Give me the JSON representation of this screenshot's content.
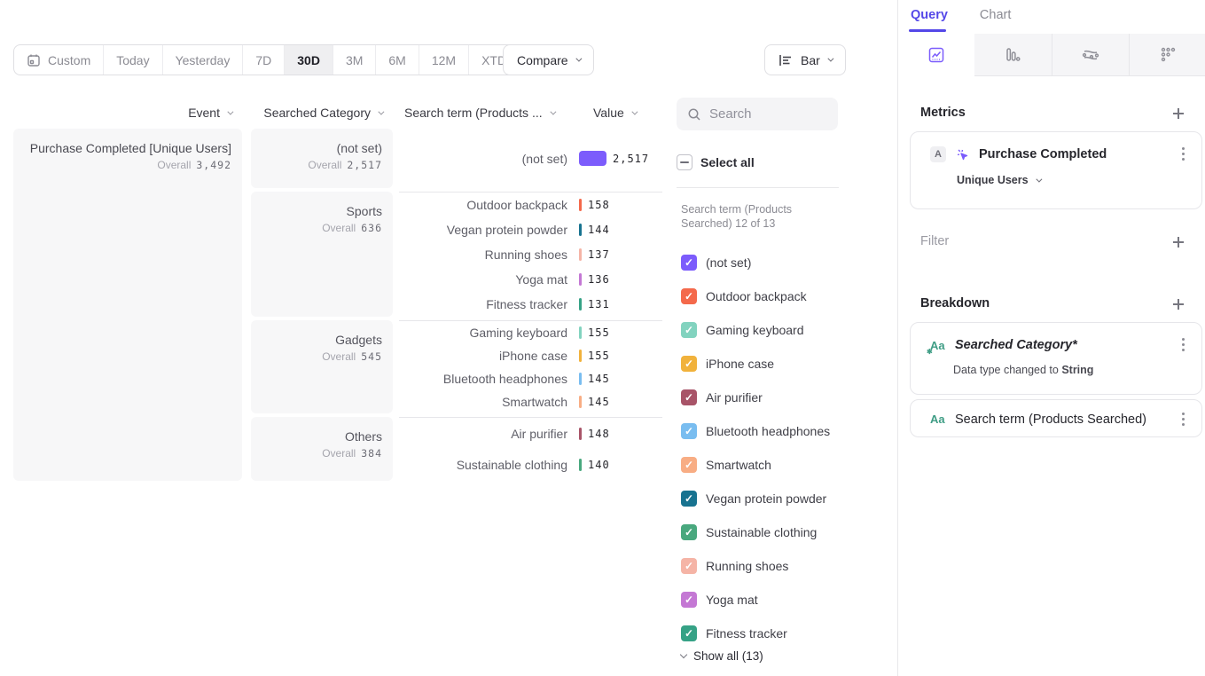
{
  "colors": {
    "accent": "#5447e8",
    "not_set_bar": "#7c5cfc"
  },
  "toolbar": {
    "date_ranges": [
      {
        "label": "Custom"
      },
      {
        "label": "Today"
      },
      {
        "label": "Yesterday"
      },
      {
        "label": "7D"
      },
      {
        "label": "30D"
      },
      {
        "label": "3M"
      },
      {
        "label": "6M"
      },
      {
        "label": "12M"
      },
      {
        "label": "XTD"
      }
    ],
    "compare_label": "Compare",
    "chart_type_label": "Bar"
  },
  "table": {
    "columns": [
      "Event",
      "Searched Category",
      "Search term (Products ...",
      "Value"
    ],
    "overall_label": "Overall",
    "event": {
      "name": "Purchase Completed [Unique Users]",
      "overall": "3,492"
    },
    "groups": [
      {
        "category": "(not set)",
        "overall": "2,517",
        "rows": [
          {
            "term": "(not set)",
            "value": "2,517",
            "color": "#7c5cfc"
          }
        ]
      },
      {
        "category": "Sports",
        "overall": "636",
        "rows": [
          {
            "term": "Outdoor backpack",
            "value": "158",
            "color": "#f4694b"
          },
          {
            "term": "Vegan protein powder",
            "value": "144",
            "color": "#187390"
          },
          {
            "term": "Running shoes",
            "value": "137",
            "color": "#f5b4a6"
          },
          {
            "term": "Yoga mat",
            "value": "136",
            "color": "#c478d4"
          },
          {
            "term": "Fitness tracker",
            "value": "131",
            "color": "#36a286"
          }
        ]
      },
      {
        "category": "Gadgets",
        "overall": "545",
        "rows": [
          {
            "term": "Gaming keyboard",
            "value": "155",
            "color": "#82d3bf"
          },
          {
            "term": "iPhone case",
            "value": "155",
            "color": "#f1b23c"
          },
          {
            "term": "Bluetooth headphones",
            "value": "145",
            "color": "#79bdf0"
          },
          {
            "term": "Smartwatch",
            "value": "145",
            "color": "#f8ad84"
          }
        ]
      },
      {
        "category": "Others",
        "overall": "384",
        "rows": [
          {
            "term": "Air purifier",
            "value": "148",
            "color": "#a85468"
          },
          {
            "term": "Sustainable clothing",
            "value": "140",
            "color": "#49a87e"
          }
        ]
      }
    ]
  },
  "legend_panel": {
    "search_placeholder": "Search",
    "select_all_label": "Select all",
    "list_label": "Search term (Products Searched) 12 of 13",
    "items": [
      {
        "label": "(not set)",
        "color": "#7c5cfc"
      },
      {
        "label": "Outdoor backpack",
        "color": "#f4694b"
      },
      {
        "label": "Gaming keyboard",
        "color": "#82d3bf"
      },
      {
        "label": "iPhone case",
        "color": "#f1b23c"
      },
      {
        "label": "Air purifier",
        "color": "#a85468"
      },
      {
        "label": "Bluetooth headphones",
        "color": "#79bdf0"
      },
      {
        "label": "Smartwatch",
        "color": "#f8ad84"
      },
      {
        "label": "Vegan protein powder",
        "color": "#187390"
      },
      {
        "label": "Sustainable clothing",
        "color": "#49a87e"
      },
      {
        "label": "Running shoes",
        "color": "#f5b4a6"
      },
      {
        "label": "Yoga mat",
        "color": "#c478d4"
      },
      {
        "label": "Fitness tracker",
        "color": "#36a286",
        "pattern": true
      }
    ],
    "show_all_label": "Show all (13)"
  },
  "query_panel": {
    "tabs": {
      "query": "Query",
      "chart": "Chart"
    },
    "metrics_heading": "Metrics",
    "metric": {
      "badge": "A",
      "name": "Purchase Completed",
      "measure": "Unique Users"
    },
    "filter_heading": "Filter",
    "breakdown_heading": "Breakdown",
    "breakdowns": [
      {
        "icon": "Aa",
        "name": "Searched Category*",
        "note_prefix": "Data type changed to ",
        "note_bold": "String"
      },
      {
        "icon": "Aa",
        "name": "Search term (Products Searched)"
      }
    ]
  }
}
